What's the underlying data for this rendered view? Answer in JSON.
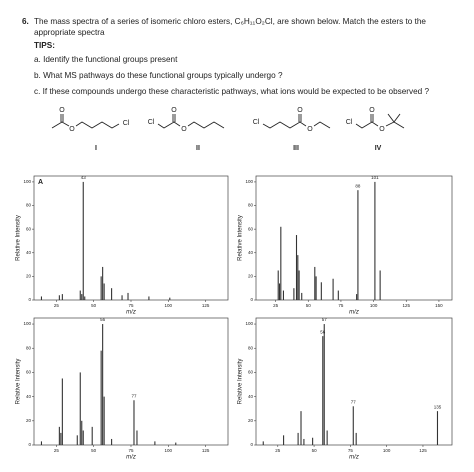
{
  "question": {
    "number": "6.",
    "text": "The mass spectra of a series of isomeric chloro esters, C₆H₁₁O₂Cl, are shown below.   Match the esters to the appropriate spectra",
    "tips_title": "TIPS:",
    "tips": [
      "a. Identify the functional groups present",
      "b. What MS pathways do these functional groups typically undergo ?",
      "c. If these compounds undergo these characteristic pathways, what ions would be expected to be observed ?"
    ]
  },
  "structures": [
    {
      "label": "I",
      "atoms": [
        "O",
        "O",
        "Cl"
      ]
    },
    {
      "label": "II",
      "atoms": [
        "Cl",
        "O",
        "O"
      ]
    },
    {
      "label": "III",
      "atoms": [
        "Cl",
        "O",
        "O"
      ]
    },
    {
      "label": "IV",
      "atoms": [
        "Cl",
        "O",
        "O"
      ]
    }
  ],
  "chart_data": [
    {
      "type": "bar",
      "panel_label": "A",
      "xlabel": "m/z",
      "ylabel": "Relative Intensity",
      "color": "#333333",
      "x": [
        15,
        27,
        29,
        41,
        42,
        43,
        44,
        55,
        56,
        57,
        62,
        69,
        73,
        87,
        101
      ],
      "values": [
        3,
        4,
        5,
        8,
        5,
        100,
        3,
        20,
        28,
        14,
        10,
        4,
        6,
        3,
        2
      ],
      "labeled_peaks": [
        43
      ],
      "xlim": [
        10,
        140
      ],
      "ylim": [
        0,
        105
      ],
      "xticks": [
        25,
        50,
        75,
        100,
        125
      ],
      "yticks": [
        0,
        20,
        40,
        60,
        80,
        100
      ]
    },
    {
      "type": "bar",
      "xlabel": "m/z",
      "ylabel": "Relative Intensity",
      "color": "#333333",
      "x": [
        27,
        28,
        29,
        31,
        39,
        41,
        42,
        43,
        45,
        55,
        56,
        60,
        69,
        73,
        87,
        88,
        101,
        105
      ],
      "values": [
        25,
        14,
        62,
        8,
        10,
        55,
        38,
        25,
        6,
        28,
        20,
        15,
        18,
        8,
        5,
        93,
        100,
        25
      ],
      "labeled_peaks": [
        88,
        101
      ],
      "xlim": [
        10,
        160
      ],
      "ylim": [
        0,
        105
      ],
      "xticks": [
        25,
        50,
        75,
        100,
        125,
        150
      ],
      "yticks": [
        0,
        20,
        40,
        60,
        80,
        100
      ]
    },
    {
      "type": "bar",
      "xlabel": "m/z",
      "ylabel": "Relative Intensity",
      "color": "#333333",
      "x": [
        15,
        27,
        28,
        29,
        39,
        41,
        42,
        43,
        49,
        55,
        56,
        57,
        62,
        77,
        79,
        91,
        105
      ],
      "values": [
        3,
        15,
        10,
        55,
        8,
        60,
        20,
        12,
        15,
        78,
        100,
        40,
        5,
        37,
        12,
        3,
        2
      ],
      "labeled_peaks": [
        56,
        77
      ],
      "xlim": [
        10,
        140
      ],
      "ylim": [
        0,
        105
      ],
      "xticks": [
        25,
        50,
        75,
        100,
        125
      ],
      "yticks": [
        0,
        20,
        40,
        60,
        80,
        100
      ]
    },
    {
      "type": "bar",
      "xlabel": "m/z",
      "ylabel": "Relative Intensity",
      "color": "#333333",
      "x": [
        15,
        29,
        39,
        41,
        43,
        49,
        56,
        57,
        59,
        77,
        79,
        135
      ],
      "values": [
        3,
        8,
        10,
        28,
        5,
        6,
        90,
        100,
        12,
        32,
        10,
        28
      ],
      "labeled_peaks": [
        56,
        57,
        77,
        135
      ],
      "xlim": [
        10,
        145
      ],
      "ylim": [
        0,
        105
      ],
      "xticks": [
        25,
        50,
        75,
        100,
        125
      ],
      "yticks": [
        0,
        20,
        40,
        60,
        80,
        100
      ]
    }
  ]
}
